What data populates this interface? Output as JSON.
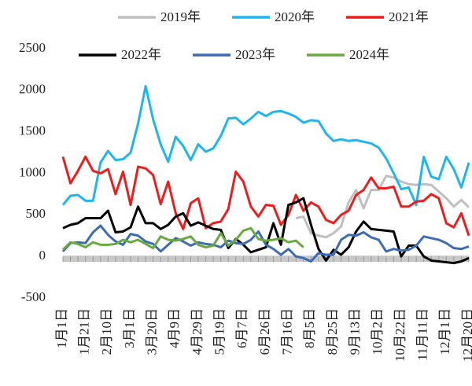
{
  "chart_data": {
    "type": "line",
    "categories": [
      "1月1日",
      null,
      null,
      "1月21日",
      null,
      null,
      "2月10日",
      null,
      null,
      "3月1日",
      null,
      null,
      "3月20日",
      null,
      null,
      "4月9日",
      null,
      null,
      "4月29日",
      null,
      null,
      "5月19日",
      null,
      null,
      "6月7日",
      null,
      null,
      "6月26日",
      null,
      null,
      "7月16日",
      null,
      null,
      "8月5日",
      null,
      null,
      "8月25日",
      null,
      null,
      "9月13日",
      null,
      null,
      "10月2日",
      null,
      null,
      "10月22日",
      null,
      null,
      "11月11日",
      null,
      null,
      "12月1日",
      null,
      null,
      "12月20日"
    ],
    "series": [
      {
        "name": "2019年",
        "color": "#bfbfbf",
        "values": [
          null,
          null,
          null,
          null,
          null,
          null,
          null,
          null,
          null,
          null,
          null,
          null,
          null,
          null,
          null,
          null,
          null,
          null,
          null,
          null,
          null,
          null,
          null,
          null,
          null,
          null,
          null,
          null,
          null,
          null,
          null,
          460,
          480,
          280,
          250,
          230,
          280,
          360,
          650,
          800,
          580,
          800,
          800,
          970,
          950,
          900,
          870,
          860,
          870,
          860,
          780,
          700,
          600,
          680,
          590
        ]
      },
      {
        "name": "2020年",
        "color": "#1fb5ee",
        "values": [
          620,
          730,
          740,
          670,
          670,
          1130,
          1270,
          1160,
          1170,
          1250,
          1600,
          2050,
          1650,
          1350,
          1140,
          1440,
          1330,
          1160,
          1350,
          1260,
          1300,
          1450,
          1660,
          1670,
          1590,
          1660,
          1740,
          1690,
          1740,
          1750,
          1720,
          1680,
          1610,
          1640,
          1630,
          1480,
          1390,
          1410,
          1390,
          1400,
          1380,
          1360,
          1310,
          1180,
          1000,
          810,
          830,
          620,
          1200,
          960,
          930,
          1200,
          1050,
          830,
          1130
        ]
      },
      {
        "name": "2021年",
        "color": "#ee1c1c",
        "values": [
          1200,
          880,
          1030,
          1200,
          1030,
          1000,
          1050,
          750,
          1020,
          620,
          1080,
          1060,
          980,
          630,
          900,
          520,
          330,
          640,
          700,
          340,
          400,
          420,
          570,
          1020,
          900,
          600,
          480,
          620,
          610,
          380,
          500,
          740,
          550,
          650,
          600,
          440,
          400,
          500,
          550,
          740,
          800,
          950,
          820,
          820,
          840,
          600,
          600,
          660,
          670,
          750,
          700,
          400,
          350,
          520,
          250
        ]
      },
      {
        "name": "2022年",
        "color": "#000000",
        "values": [
          340,
          380,
          400,
          460,
          460,
          460,
          550,
          290,
          300,
          350,
          600,
          400,
          400,
          330,
          380,
          480,
          520,
          370,
          410,
          370,
          330,
          320,
          100,
          210,
          140,
          50,
          80,
          110,
          400,
          140,
          620,
          650,
          700,
          380,
          90,
          -50,
          80,
          20,
          110,
          300,
          420,
          330,
          320,
          310,
          300,
          0,
          130,
          130,
          0,
          -50,
          -60,
          -70,
          -80,
          -60,
          -20
        ]
      },
      {
        "name": "2023年",
        "color": "#3e6bb5",
        "values": [
          60,
          160,
          170,
          160,
          290,
          370,
          260,
          180,
          140,
          270,
          250,
          180,
          150,
          60,
          140,
          220,
          180,
          130,
          170,
          150,
          140,
          110,
          190,
          160,
          150,
          200,
          300,
          140,
          90,
          20,
          90,
          0,
          -20,
          -60,
          40,
          20,
          20,
          200,
          260,
          250,
          290,
          230,
          200,
          60,
          90,
          70,
          80,
          130,
          240,
          220,
          200,
          160,
          100,
          90,
          120
        ]
      },
      {
        "name": "2024年",
        "color": "#6aa842",
        "values": [
          80,
          170,
          150,
          110,
          170,
          140,
          140,
          150,
          200,
          170,
          200,
          150,
          100,
          240,
          200,
          190,
          210,
          240,
          140,
          110,
          130,
          280,
          130,
          200,
          310,
          340,
          210,
          190,
          200,
          220,
          170,
          190,
          110,
          null,
          null,
          null,
          null,
          null,
          null,
          null,
          null,
          null,
          null,
          null,
          null,
          null,
          null,
          null,
          null,
          null,
          null,
          null,
          null,
          null,
          null
        ]
      }
    ],
    "ylim": [
      -500,
      2500
    ],
    "yticks": [
      -500,
      0,
      500,
      1000,
      1500,
      2000,
      2500
    ]
  }
}
